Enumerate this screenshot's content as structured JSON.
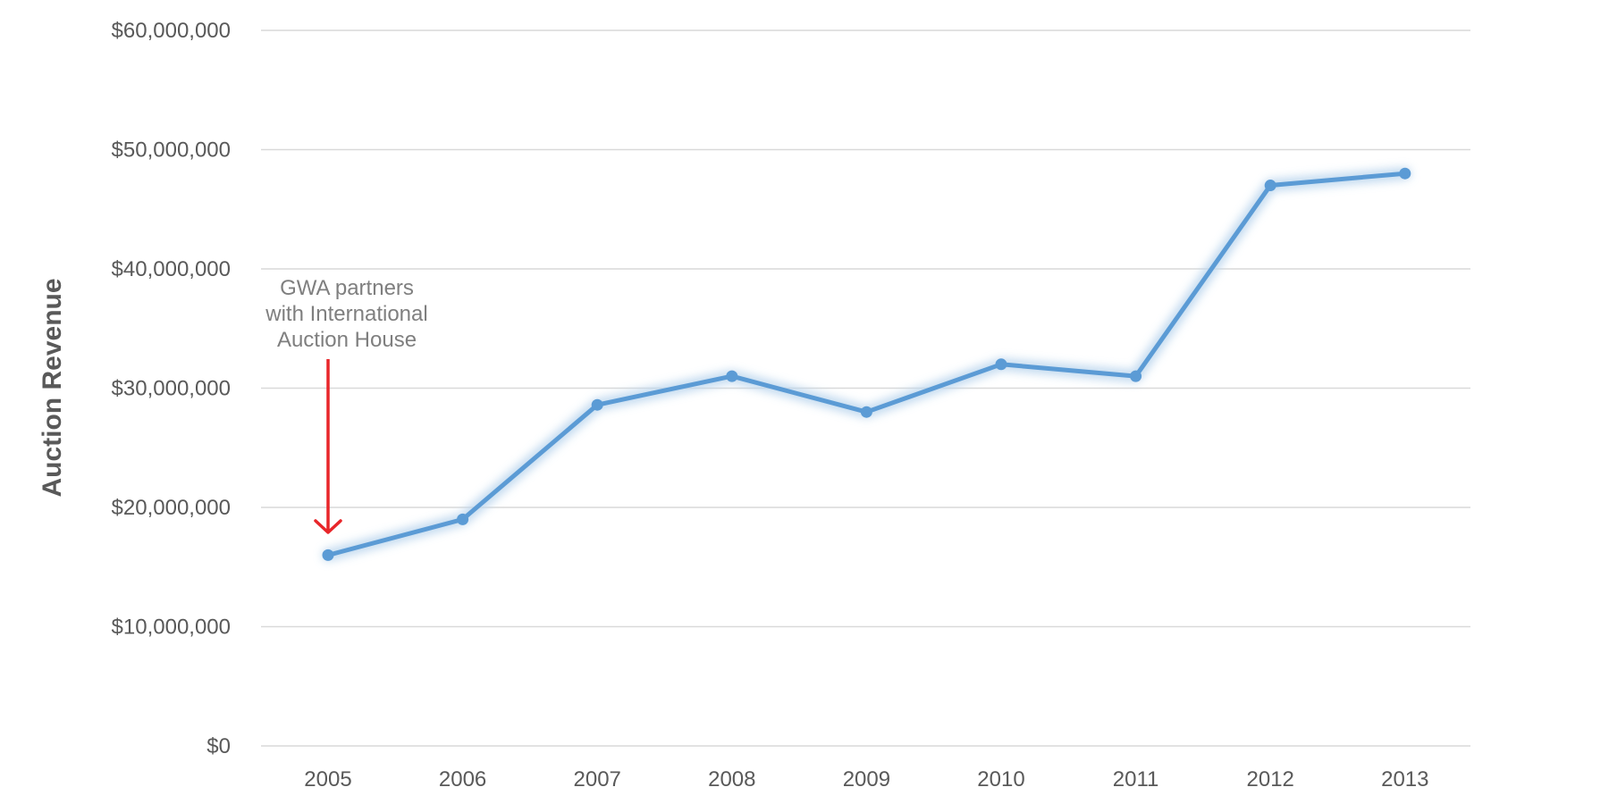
{
  "chart_data": {
    "type": "line",
    "title": "",
    "xlabel": "",
    "ylabel": "Auction Revenue",
    "x": [
      "2005",
      "2006",
      "2007",
      "2008",
      "2009",
      "2010",
      "2011",
      "2012",
      "2013"
    ],
    "series": [
      {
        "values": [
          16000000,
          19000000,
          28600000,
          31000000,
          28000000,
          32000000,
          31000000,
          47000000,
          48000000
        ]
      }
    ],
    "ylim": [
      0,
      60000000
    ],
    "yticks": [
      0,
      10000000,
      20000000,
      30000000,
      40000000,
      50000000,
      60000000
    ],
    "ytick_labels": [
      "$0",
      "$10,000,000",
      "$20,000,000",
      "$30,000,000",
      "$40,000,000",
      "$50,000,000",
      "$60,000,000"
    ],
    "grid": true,
    "legend": "none",
    "colors": {
      "line": "#5b9bd5",
      "glow": "#bdd7ee",
      "grid": "#d9d9d9",
      "axis_text": "#595959",
      "annotation_text": "#7f7f7f",
      "arrow": "#e8262a"
    },
    "annotation": {
      "lines": [
        "GWA partners",
        "with International",
        "Auction House"
      ],
      "target_x": "2005"
    }
  }
}
